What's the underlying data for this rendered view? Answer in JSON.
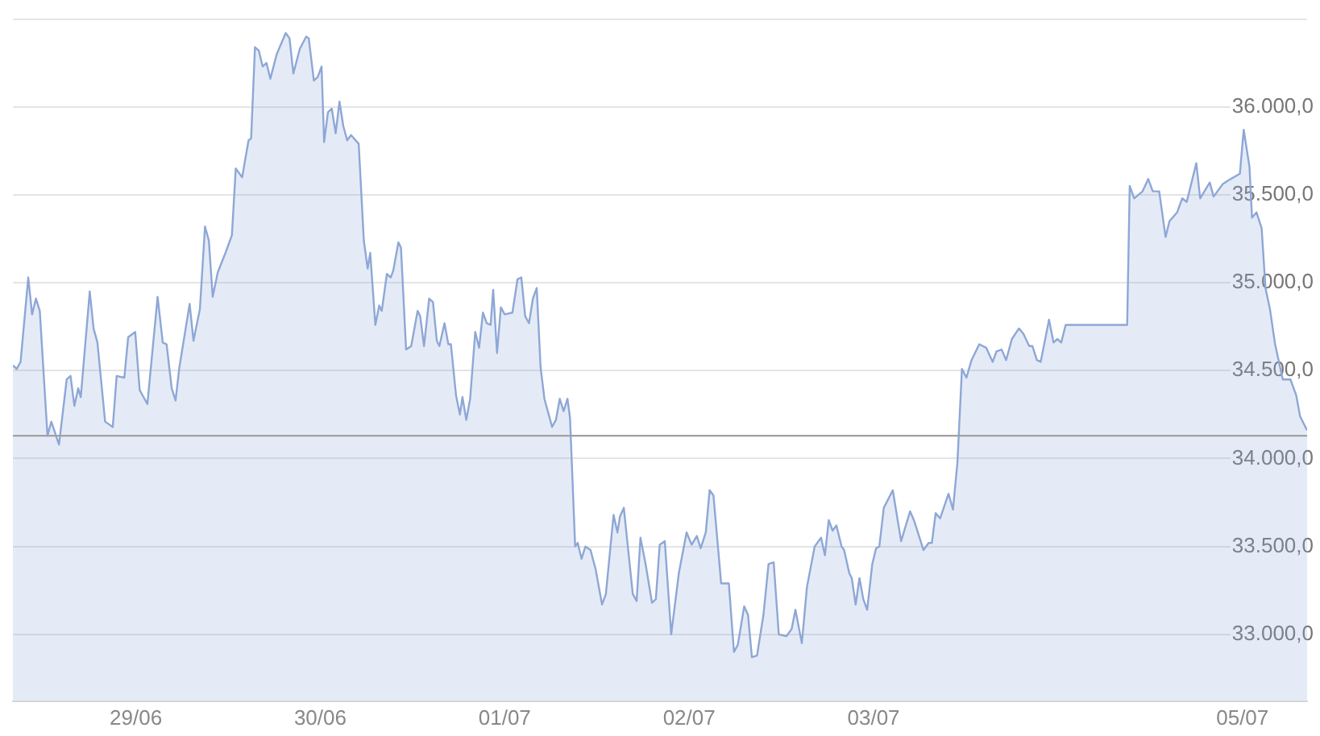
{
  "chart_data": {
    "type": "area",
    "x": [
      "--06-28T08:00",
      "--06-28T08:30",
      "--06-28T09:00",
      "--06-28T10:00",
      "--06-28T10:30",
      "--06-28T11:00",
      "--06-28T11:30",
      "--06-28T12:30",
      "--06-28T13:00",
      "--06-28T14:00",
      "--06-28T15:00",
      "--06-28T15:30",
      "--06-28T16:00",
      "--06-28T16:30",
      "--06-28T16:50",
      "--06-28T18:00",
      "--06-28T18:30",
      "--06-28T19:00",
      "--06-28T20:00",
      "--06-28T21:00",
      "--06-28T21:30",
      "--06-28T22:30",
      "--06-28T23:00",
      "--06-28T23:55",
      "--06-29T00:30",
      "--06-29T01:30",
      "--06-29T02:50",
      "--06-29T03:30",
      "--06-29T04:00",
      "--06-29T04:40",
      "--06-29T05:10",
      "--06-29T05:40",
      "--06-29T07:00",
      "--06-29T07:30",
      "--06-29T08:20",
      "--06-29T09:00",
      "--06-29T09:30",
      "--06-29T10:00",
      "--06-29T10:40",
      "--06-29T11:40",
      "--06-29T12:30",
      "--06-29T13:00",
      "--06-29T13:50",
      "--06-29T14:40",
      "--06-29T15:00",
      "--06-29T15:30",
      "--06-29T16:00",
      "--06-29T16:30",
      "--06-29T17:00",
      "--06-29T17:30",
      "--06-29T18:20",
      "--06-29T19:30",
      "--06-29T20:00",
      "--06-29T20:30",
      "--06-29T21:20",
      "--06-29T22:10",
      "--06-29T22:30",
      "--06-29T23:10",
      "--06-29T23:40",
      "--06-30T00:10",
      "--06-30T00:30",
      "--06-30T01:00",
      "--06-30T01:30",
      "--06-30T02:00",
      "--06-30T02:30",
      "--06-30T03:00",
      "--06-30T03:30",
      "--06-30T04:00",
      "--06-30T05:00",
      "--06-30T05:40",
      "--06-30T06:10",
      "--06-30T06:30",
      "--06-30T07:10",
      "--06-30T07:40",
      "--06-30T08:00",
      "--06-30T08:40",
      "--06-30T09:10",
      "--06-30T09:30",
      "--06-30T10:10",
      "--06-30T10:30",
      "--06-30T11:10",
      "--06-30T11:50",
      "--06-30T12:40",
      "--06-30T13:00",
      "--06-30T13:30",
      "--06-30T14:10",
      "--06-30T14:40",
      "--06-30T15:10",
      "--06-30T15:30",
      "--06-30T16:10",
      "--06-30T16:40",
      "--06-30T17:00",
      "--06-30T17:40",
      "--06-30T18:10",
      "--06-30T18:30",
      "--06-30T19:00",
      "--06-30T19:30",
      "--06-30T20:10",
      "--06-30T20:40",
      "--06-30T21:10",
      "--06-30T21:40",
      "--06-30T22:10",
      "--06-30T22:30",
      "--06-30T23:00",
      "--06-30T23:30",
      "--07-01T00:00",
      "--07-01T01:00",
      "--07-01T01:40",
      "--07-01T02:10",
      "--07-01T02:40",
      "--07-01T03:10",
      "--07-01T03:40",
      "--07-01T04:10",
      "--07-01T04:40",
      "--07-01T05:10",
      "--07-01T06:10",
      "--07-01T06:40",
      "--07-01T07:10",
      "--07-01T07:40",
      "--07-01T08:10",
      "--07-01T08:30",
      "--07-01T09:10",
      "--07-01T09:30",
      "--07-01T10:00",
      "--07-01T10:30",
      "--07-01T11:10",
      "--07-01T11:50",
      "--07-01T12:40",
      "--07-01T13:10",
      "--07-01T14:10",
      "--07-01T14:40",
      "--07-01T15:00",
      "--07-01T15:30",
      "--07-01T16:40",
      "--07-01T17:10",
      "--07-01T17:40",
      "--07-01T18:20",
      "--07-01T19:10",
      "--07-01T19:40",
      "--07-01T20:10",
      "--07-01T20:50",
      "--07-01T21:40",
      "--07-01T22:40",
      "--07-01T23:40",
      "--07-02T00:20",
      "--07-02T01:00",
      "--07-02T01:30",
      "--07-02T02:10",
      "--07-02T02:40",
      "--07-02T03:10",
      "--07-02T04:10",
      "--07-02T05:10",
      "--07-02T05:50",
      "--07-02T06:20",
      "--07-02T07:10",
      "--07-02T07:40",
      "--07-02T08:10",
      "--07-02T08:50",
      "--07-02T09:40",
      "--07-02T10:20",
      "--07-02T11:00",
      "--07-02T11:40",
      "--07-02T12:40",
      "--07-02T13:20",
      "--07-02T13:50",
      "--07-02T14:40",
      "--07-02T15:20",
      "--07-02T16:20",
      "--07-02T17:10",
      "--07-02T17:40",
      "--07-02T18:10",
      "--07-02T18:40",
      "--07-02T19:10",
      "--07-02T19:50",
      "--07-02T20:10",
      "--07-02T20:50",
      "--07-02T21:10",
      "--07-02T21:40",
      "--07-02T22:10",
      "--07-02T22:40",
      "--07-02T23:10",
      "--07-02T23:50",
      "--07-03T00:20",
      "--07-03T00:45",
      "--07-03T01:20",
      "--07-03T02:30",
      "--07-03T03:35",
      "--07-03T04:45",
      "--07-03T05:15",
      "--07-03T06:30",
      "--07-03T07:10",
      "--07-03T07:35",
      "--07-03T08:05",
      "--07-03T08:40",
      "--07-03T09:45",
      "--07-03T10:20",
      "--07-03T10:55",
      "--07-03T11:30",
      "--07-03T12:05",
      "--07-03T12:45",
      "--07-03T13:45",
      "--07-03T14:40",
      "--07-03T15:30",
      "--07-03T16:00",
      "--07-03T16:40",
      "--07-03T17:15",
      "--07-03T18:00",
      "--07-03T18:55",
      "--07-03T19:30",
      "--07-03T20:15",
      "--07-03T20:40",
      "--07-03T21:15",
      "--07-03T21:45",
      "--07-03T22:50",
      "--07-03T23:25",
      "--07-03T23:55",
      "--07-04T00:25",
      "--07-04T01:00",
      "--07-04T01:50",
      "--07-04T09:00",
      "--07-04T09:20",
      "--07-04T09:55",
      "--07-04T11:00",
      "--07-04T11:45",
      "--07-04T12:20",
      "--07-04T13:10",
      "--07-04T14:00",
      "--07-04T14:30",
      "--07-04T15:30",
      "--07-04T16:10",
      "--07-04T16:45",
      "--07-04T18:00",
      "--07-04T18:30",
      "--07-04T19:45",
      "--07-04T20:15",
      "--07-04T21:25",
      "--07-04T22:05",
      "--07-04T23:40",
      "--07-05T00:10",
      "--07-05T00:55",
      "--07-05T01:15",
      "--07-05T01:50",
      "--07-05T02:30",
      "--07-05T03:00",
      "--07-05T03:35",
      "--07-05T04:15",
      "--07-05T05:15",
      "--07-05T06:15",
      "--07-05T07:00",
      "--07-05T07:30",
      "--07-05T08:25"
    ],
    "series": [
      {
        "color": "#8ea7d6",
        "values": [
          34530,
          34510,
          34550,
          35030,
          34820,
          34910,
          34840,
          34130,
          34210,
          34080,
          34450,
          34470,
          34300,
          34400,
          34350,
          34950,
          34740,
          34660,
          34210,
          34180,
          34470,
          34460,
          34690,
          34720,
          34390,
          34310,
          34920,
          34660,
          34650,
          34400,
          34330,
          34520,
          34880,
          34670,
          34850,
          35320,
          35240,
          34920,
          35060,
          35170,
          35270,
          35650,
          35600,
          35810,
          35820,
          36340,
          36320,
          36230,
          36250,
          36160,
          36300,
          36420,
          36390,
          36190,
          36330,
          36400,
          36390,
          36150,
          36170,
          36230,
          35800,
          35970,
          35990,
          35850,
          36030,
          35890,
          35810,
          35840,
          35790,
          35240,
          35080,
          35170,
          34760,
          34870,
          34840,
          35050,
          35030,
          35070,
          35230,
          35200,
          34620,
          34640,
          34840,
          34810,
          34640,
          34910,
          34890,
          34670,
          34640,
          34770,
          34650,
          34650,
          34360,
          34250,
          34350,
          34220,
          34340,
          34720,
          34630,
          34830,
          34770,
          34760,
          34960,
          34600,
          34860,
          34820,
          34830,
          35020,
          35030,
          34810,
          34770,
          34910,
          34970,
          34520,
          34340,
          34180,
          34220,
          34340,
          34270,
          34340,
          34230,
          33500,
          33520,
          33430,
          33500,
          33480,
          33370,
          33170,
          33230,
          33680,
          33580,
          33670,
          33720,
          33230,
          33190,
          33550,
          33400,
          33180,
          33200,
          33510,
          33530,
          33000,
          33350,
          33580,
          33510,
          33560,
          33490,
          33580,
          33820,
          33790,
          33290,
          33290,
          32900,
          32940,
          33160,
          33110,
          32870,
          32880,
          33110,
          33400,
          33410,
          33000,
          32990,
          33030,
          33140,
          32950,
          33270,
          33500,
          33550,
          33450,
          33650,
          33590,
          33620,
          33500,
          33480,
          33350,
          33320,
          33170,
          33320,
          33200,
          33140,
          33400,
          33490,
          33500,
          33720,
          33820,
          33530,
          33700,
          33650,
          33480,
          33520,
          33520,
          33690,
          33660,
          33800,
          33710,
          33980,
          34510,
          34460,
          34560,
          34650,
          34630,
          34550,
          34610,
          34620,
          34560,
          34680,
          34740,
          34710,
          34640,
          34640,
          34560,
          34550,
          34790,
          34660,
          34680,
          34660,
          34760,
          34760,
          34760,
          35550,
          35480,
          35520,
          35590,
          35520,
          35520,
          35260,
          35350,
          35400,
          35480,
          35460,
          35680,
          35480,
          35570,
          35490,
          35560,
          35580,
          35620,
          35870,
          35660,
          35370,
          35400,
          35310,
          34970,
          34850,
          34650,
          34450,
          34450,
          34360,
          34240,
          34160
        ]
      }
    ],
    "xlim": [
      "--06-28T08:00",
      "--07-05T08:25"
    ],
    "xticks": [
      {
        "value": "--06-29",
        "label": "29/06"
      },
      {
        "value": "--06-30",
        "label": "30/06"
      },
      {
        "value": "--07-01",
        "label": "01/07"
      },
      {
        "value": "--07-02",
        "label": "02/07"
      },
      {
        "value": "--07-03",
        "label": "03/07"
      },
      {
        "value": "--07-05",
        "label": "05/07"
      }
    ],
    "ylim": [
      32620,
      36500
    ],
    "yticks": [
      {
        "value": 33000,
        "label": "33.000,0"
      },
      {
        "value": 33500,
        "label": "33.500,0"
      },
      {
        "value": 34000,
        "label": "34.000,0"
      },
      {
        "value": 34500,
        "label": "34.500,0"
      },
      {
        "value": 35000,
        "label": "35.000,0"
      },
      {
        "value": 35500,
        "label": "35.500,0"
      },
      {
        "value": 36000,
        "label": "36.000,0"
      },
      {
        "value": 36500,
        "label": null
      }
    ],
    "ref_lines": [
      {
        "axis": "y",
        "value": 34130,
        "color": "#a0a0a0"
      }
    ],
    "grid": "y",
    "legend": false,
    "marker": "none",
    "line_style": "solid"
  }
}
